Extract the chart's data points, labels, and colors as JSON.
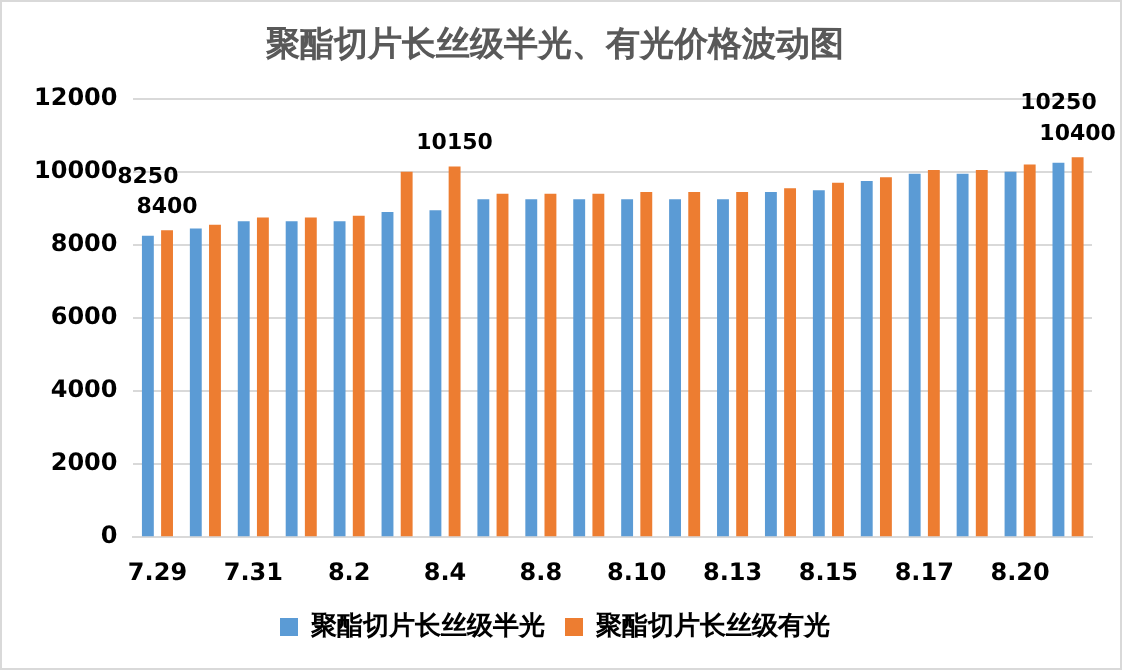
{
  "chart_data": {
    "type": "bar",
    "title": "聚酯切片长丝级半光、有光价格波动图",
    "categories": [
      "7.29",
      null,
      "7.31",
      null,
      "8.2",
      null,
      "8.4",
      null,
      "8.8",
      null,
      "8.10",
      null,
      "8.13",
      null,
      "8.15",
      null,
      "8.17",
      null,
      "8.20",
      null
    ],
    "series": [
      {
        "name": "聚酯切片长丝级半光",
        "color": "#5b9bd5",
        "values": [
          8250,
          8450,
          8650,
          8650,
          8650,
          8900,
          8950,
          9250,
          9250,
          9250,
          9250,
          9250,
          9250,
          9450,
          9500,
          9750,
          9950,
          9950,
          10000,
          10250
        ],
        "value_labels": [
          "8250",
          null,
          null,
          null,
          null,
          null,
          null,
          null,
          null,
          null,
          null,
          null,
          null,
          null,
          null,
          null,
          null,
          null,
          null,
          "10250"
        ]
      },
      {
        "name": "聚酯切片长丝级有光",
        "color": "#ed7d31",
        "values": [
          8400,
          8550,
          8750,
          8750,
          8800,
          10000,
          10150,
          9400,
          9400,
          9400,
          9450,
          9450,
          9450,
          9550,
          9700,
          9850,
          10050,
          10050,
          10200,
          10400
        ],
        "value_labels": [
          "8400",
          null,
          null,
          null,
          null,
          null,
          "10150",
          null,
          null,
          null,
          null,
          null,
          null,
          null,
          null,
          null,
          null,
          null,
          null,
          "10400"
        ]
      }
    ],
    "ylim": [
      0,
      12000
    ],
    "yticks": [
      0,
      2000,
      4000,
      6000,
      8000,
      10000,
      12000
    ],
    "grid": "y",
    "legend": "bottom"
  }
}
